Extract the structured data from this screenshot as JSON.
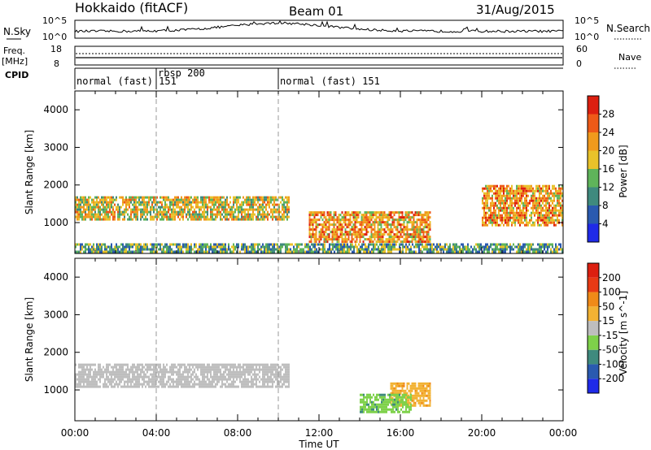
{
  "chart_data": {
    "type": "heatmap",
    "header": {
      "station": "Hokkaido (fitACF)",
      "beam": "Beam 01",
      "date": "31/Aug/2015"
    },
    "summary_panel": {
      "left_label": "N.Sky",
      "left_ticks": [
        "10^5",
        "10^0"
      ],
      "right_label": "N.Search",
      "right_ticks": [
        "10^5",
        "10^0"
      ]
    },
    "freq_panel": {
      "left_label_1": "Freq.",
      "left_label_2": "[MHz]",
      "left_ticks": [
        18,
        8
      ],
      "right_label": "Nave",
      "right_ticks": [
        60,
        0
      ]
    },
    "cpid_panel": {
      "label": "CPID",
      "modes": [
        {
          "name": "normal (fast)",
          "id": 151,
          "start_hour": 0
        },
        {
          "name": "rbsp",
          "id": 200,
          "start_hour": 4
        },
        {
          "name": "normal (fast)",
          "id": 151,
          "start_hour": 10
        }
      ]
    },
    "x_axis": {
      "label": "Time UT",
      "range_hours": [
        0,
        24
      ],
      "tick_labels": [
        "00:00",
        "04:00",
        "08:00",
        "12:00",
        "16:00",
        "20:00",
        "00:00"
      ]
    },
    "y_axis": {
      "label": "Slant Range [km]",
      "range_km": [
        180,
        4500
      ],
      "tick_labels": [
        1000,
        2000,
        3000,
        4000
      ]
    },
    "panels": [
      {
        "name": "power",
        "colorbar_label": "Power [dB]",
        "colorbar_ticks": [
          4,
          8,
          12,
          16,
          20,
          24,
          28
        ],
        "colorbar_range": [
          0,
          32
        ],
        "colors": [
          "#1f2ae8",
          "#2a5ab0",
          "#3f8a7e",
          "#5fb45a",
          "#e8c22a",
          "#f19a1c",
          "#ee5a18",
          "#dc1f10"
        ],
        "features": [
          {
            "description": "main band",
            "t_range": [
              0,
              10.5
            ],
            "range_km": [
              1100,
              1700
            ],
            "level": 18
          },
          {
            "description": "lower patch",
            "t_range": [
              11.5,
              17.5
            ],
            "range_km": [
              500,
              1300
            ],
            "level": 22
          },
          {
            "description": "late band",
            "t_range": [
              20,
              24
            ],
            "range_km": [
              900,
              2000
            ],
            "level": 22
          },
          {
            "description": "ground scatter near range",
            "t_range": [
              0,
              24
            ],
            "range_km": [
              200,
              450
            ],
            "level": 12
          }
        ]
      },
      {
        "name": "velocity",
        "colorbar_label": "Velocity [m s^-1]",
        "colorbar_ticks": [
          200,
          100,
          50,
          15,
          -15,
          -50,
          -100,
          -200
        ],
        "colorbar_range": [
          -250,
          250
        ],
        "colors": [
          "#1f2ae8",
          "#2a5ab0",
          "#3f8a7e",
          "#7ed14a",
          "#bebebe",
          "#f2b233",
          "#f08a18",
          "#e83a14",
          "#dc1f10"
        ],
        "features": [
          {
            "description": "ground scatter band",
            "t_range": [
              0,
              10.5
            ],
            "range_km": [
              1100,
              1700
            ],
            "level": 0
          },
          {
            "description": "positive patch",
            "t_range": [
              15.5,
              17.5
            ],
            "range_km": [
              600,
              1200
            ],
            "level": 60
          },
          {
            "description": "negative patch",
            "t_range": [
              14,
              16.5
            ],
            "range_km": [
              400,
              900
            ],
            "level": -60
          }
        ]
      }
    ]
  }
}
